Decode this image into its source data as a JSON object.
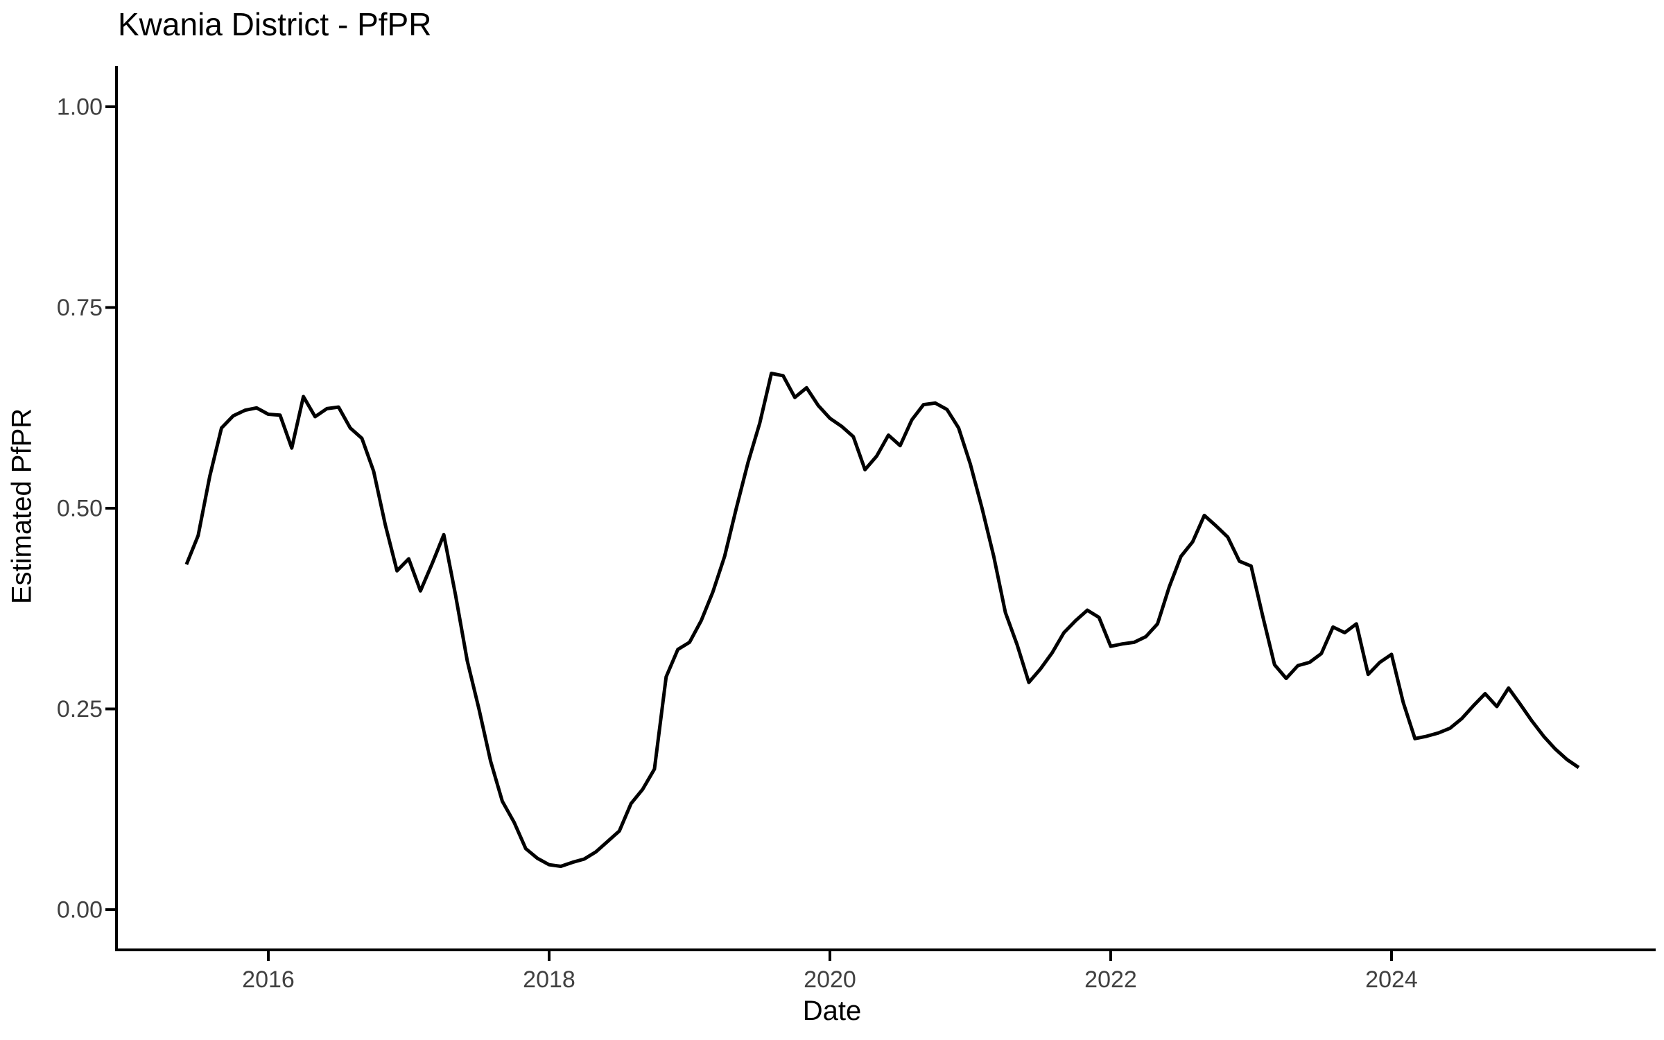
{
  "page": {
    "background_color": "#ffffff",
    "title": "Kwania District - PfPR",
    "xlabel": "Date",
    "ylabel": "Estimated PfPR"
  },
  "chart_data": {
    "type": "line",
    "title": "Kwania District - PfPR",
    "xlabel": "Date",
    "ylabel": "Estimated PfPR",
    "series_name": "Estimated PfPR",
    "line_color": "#000000",
    "axis_color": "#000000",
    "tick_label_color": "#404040",
    "grid": "off",
    "legend": "none",
    "ylim": [
      0.0,
      1.0
    ],
    "y_ticks": [
      0.0,
      0.25,
      0.5,
      0.75,
      1.0
    ],
    "y_tick_labels": [
      "0.00",
      "0.25",
      "0.50",
      "0.75",
      "1.00"
    ],
    "x_ticks_years": [
      2016,
      2018,
      2020,
      2022,
      2024
    ],
    "x_tick_labels": [
      "2016",
      "2018",
      "2020",
      "2022",
      "2024"
    ],
    "x_range_months": [
      "2015-06",
      "2025-05"
    ],
    "x": [
      "2015-06",
      "2015-07",
      "2015-08",
      "2015-09",
      "2015-10",
      "2015-11",
      "2015-12",
      "2016-01",
      "2016-02",
      "2016-03",
      "2016-04",
      "2016-05",
      "2016-06",
      "2016-07",
      "2016-08",
      "2016-09",
      "2016-10",
      "2016-11",
      "2016-12",
      "2017-01",
      "2017-02",
      "2017-03",
      "2017-04",
      "2017-05",
      "2017-06",
      "2017-07",
      "2017-08",
      "2017-09",
      "2017-10",
      "2017-11",
      "2017-12",
      "2018-01",
      "2018-02",
      "2018-03",
      "2018-04",
      "2018-05",
      "2018-06",
      "2018-07",
      "2018-08",
      "2018-09",
      "2018-10",
      "2018-11",
      "2018-12",
      "2019-01",
      "2019-02",
      "2019-03",
      "2019-04",
      "2019-05",
      "2019-06",
      "2019-07",
      "2019-08",
      "2019-09",
      "2019-10",
      "2019-11",
      "2019-12",
      "2020-01",
      "2020-02",
      "2020-03",
      "2020-04",
      "2020-05",
      "2020-06",
      "2020-07",
      "2020-08",
      "2020-09",
      "2020-10",
      "2020-11",
      "2020-12",
      "2021-01",
      "2021-02",
      "2021-03",
      "2021-04",
      "2021-05",
      "2021-06",
      "2021-07",
      "2021-08",
      "2021-09",
      "2021-10",
      "2021-11",
      "2021-12",
      "2022-01",
      "2022-02",
      "2022-03",
      "2022-04",
      "2022-05",
      "2022-06",
      "2022-07",
      "2022-08",
      "2022-09",
      "2022-10",
      "2022-11",
      "2022-12",
      "2023-01",
      "2023-02",
      "2023-03",
      "2023-04",
      "2023-05",
      "2023-06",
      "2023-07",
      "2023-08",
      "2023-09",
      "2023-10",
      "2023-11",
      "2023-12",
      "2024-01",
      "2024-02",
      "2024-03",
      "2024-04",
      "2024-05",
      "2024-06",
      "2024-07",
      "2024-08",
      "2024-09",
      "2024-10",
      "2024-11",
      "2024-12",
      "2025-01",
      "2025-02",
      "2025-03",
      "2025-04",
      "2025-05"
    ],
    "values": [
      0.43,
      0.466,
      0.54,
      0.6,
      0.615,
      0.622,
      0.625,
      0.617,
      0.616,
      0.575,
      0.639,
      0.614,
      0.624,
      0.626,
      0.6,
      0.587,
      0.546,
      0.479,
      0.422,
      0.437,
      0.397,
      0.431,
      0.467,
      0.392,
      0.31,
      0.25,
      0.185,
      0.135,
      0.109,
      0.076,
      0.064,
      0.056,
      0.054,
      0.059,
      0.063,
      0.072,
      0.085,
      0.098,
      0.132,
      0.15,
      0.175,
      0.29,
      0.324,
      0.333,
      0.36,
      0.396,
      0.44,
      0.5,
      0.557,
      0.606,
      0.668,
      0.665,
      0.638,
      0.65,
      0.628,
      0.612,
      0.602,
      0.589,
      0.548,
      0.565,
      0.591,
      0.578,
      0.61,
      0.629,
      0.631,
      0.623,
      0.6,
      0.555,
      0.5,
      0.44,
      0.37,
      0.33,
      0.283,
      0.3,
      0.32,
      0.345,
      0.36,
      0.373,
      0.364,
      0.328,
      0.331,
      0.333,
      0.34,
      0.356,
      0.402,
      0.44,
      0.458,
      0.491,
      0.478,
      0.464,
      0.434,
      0.428,
      0.365,
      0.305,
      0.288,
      0.304,
      0.308,
      0.319,
      0.352,
      0.345,
      0.356,
      0.293,
      0.308,
      0.318,
      0.258,
      0.213,
      0.216,
      0.22,
      0.226,
      0.238,
      0.254,
      0.269,
      0.253,
      0.276,
      0.256,
      0.235,
      0.216,
      0.2,
      0.187,
      0.177
    ]
  }
}
